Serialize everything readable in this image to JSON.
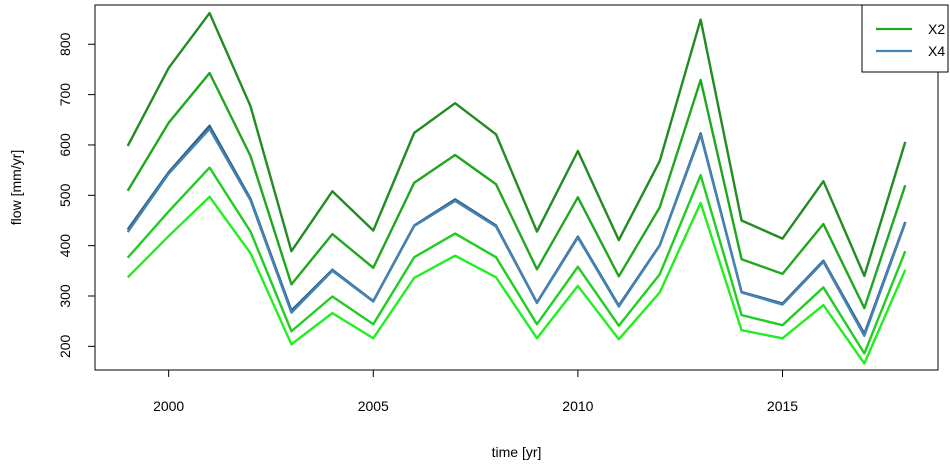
{
  "chart_data": {
    "type": "line",
    "title": "",
    "xlabel": "time [yr]",
    "ylabel": "flow [mm/yr]",
    "xlim": [
      1998.2,
      2018.8
    ],
    "ylim": [
      153,
      878
    ],
    "x_ticks": [
      2000,
      2005,
      2010,
      2015
    ],
    "x_tick_labels": [
      "2000",
      "2005",
      "2010",
      "2015"
    ],
    "y_ticks": [
      200,
      300,
      400,
      500,
      600,
      700,
      800
    ],
    "y_tick_labels": [
      "200",
      "300",
      "400",
      "500",
      "600",
      "700",
      "800"
    ],
    "legend_position": "top-right",
    "legend": [
      {
        "label": "X2",
        "color": "#1fa81f"
      },
      {
        "label": "X4",
        "color": "#4682b4"
      }
    ],
    "x": [
      1999,
      2000,
      2001,
      2002,
      2003,
      2004,
      2005,
      2006,
      2007,
      2008,
      2009,
      2010,
      2011,
      2012,
      2013,
      2014,
      2015,
      2016,
      2017,
      2018
    ],
    "series": [
      {
        "color": "#228b22",
        "values": [
          598,
          753,
          862,
          677,
          389,
          508,
          430,
          624,
          683,
          621,
          428,
          588,
          411,
          568,
          849,
          450,
          414,
          528,
          340,
          606
        ]
      },
      {
        "color": "#1fa81f",
        "values": [
          509,
          644,
          743,
          578,
          323,
          423,
          356,
          525,
          580,
          522,
          353,
          496,
          339,
          476,
          729,
          373,
          344,
          443,
          276,
          520
        ]
      },
      {
        "color": "#2e5e7e",
        "values": [
          432,
          546,
          638,
          493,
          271,
          352,
          290,
          440,
          492,
          440,
          287,
          418,
          281,
          401,
          623,
          308,
          285,
          370,
          225,
          447
        ]
      },
      {
        "color": "#4682b4",
        "values": [
          427,
          543,
          632,
          490,
          267,
          350,
          289,
          439,
          489,
          438,
          286,
          416,
          279,
          400,
          620,
          307,
          283,
          368,
          221,
          445
        ]
      },
      {
        "color": "#22cc22",
        "values": [
          376,
          468,
          555,
          428,
          230,
          299,
          244,
          377,
          424,
          377,
          244,
          358,
          241,
          343,
          540,
          262,
          242,
          317,
          186,
          389
        ]
      },
      {
        "color": "#22ee22",
        "values": [
          337,
          419,
          497,
          385,
          204,
          266,
          216,
          336,
          380,
          337,
          216,
          320,
          214,
          307,
          485,
          232,
          216,
          282,
          166,
          352
        ]
      }
    ]
  }
}
